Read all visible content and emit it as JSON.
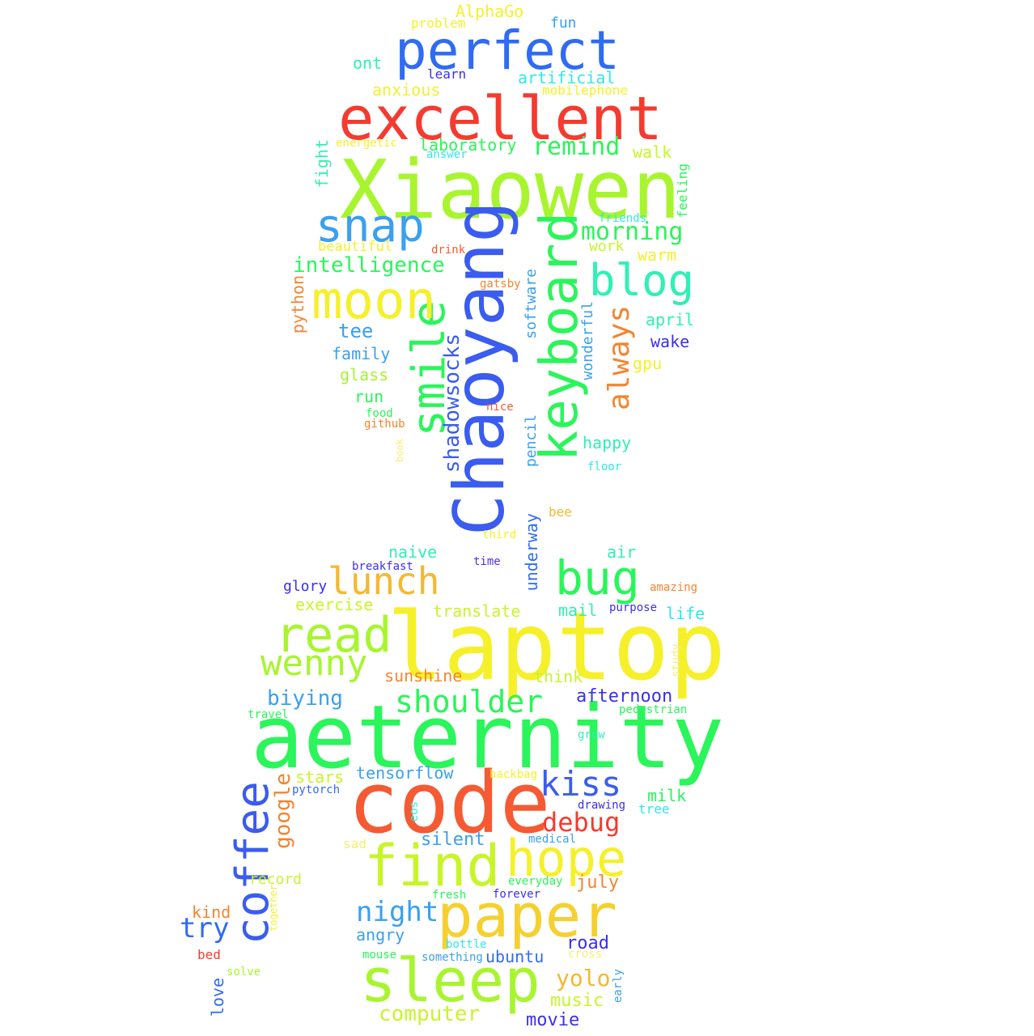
{
  "palette": {
    "blue": "#3a5cf0",
    "royal": "#2f6bf5",
    "sky": "#3aa0f0",
    "cyan": "#2fe8e8",
    "teal": "#2ff0b5",
    "green": "#2af55a",
    "lime": "#8cf52a",
    "chartreuse": "#a8f52f",
    "yellowgreen": "#c8f52a",
    "yellow": "#f5f02a",
    "gold": "#f5d02f",
    "amber": "#f5b82f",
    "orange": "#f5842f",
    "red": "#f53a2f",
    "redorange": "#f55a32",
    "indigo": "#3a2ff0",
    "purple": "#4a2ff0",
    "lightyellow": "#f5f070"
  },
  "words": [
    {
      "text": "Xiaowen",
      "color": "chartreuse"
    },
    {
      "text": "Chaoyang",
      "color": "blue"
    },
    {
      "text": "laptop",
      "color": "yellow"
    },
    {
      "text": "aeternity",
      "color": "green"
    },
    {
      "text": "code",
      "color": "redorange"
    },
    {
      "text": "excellent",
      "color": "red"
    },
    {
      "text": "perfect",
      "color": "royal"
    },
    {
      "text": "keyboard",
      "color": "green"
    },
    {
      "text": "smile",
      "color": "green"
    },
    {
      "text": "moon",
      "color": "yellow"
    },
    {
      "text": "snap",
      "color": "sky"
    },
    {
      "text": "blog",
      "color": "teal"
    },
    {
      "text": "coffee",
      "color": "blue"
    },
    {
      "text": "sleep",
      "color": "chartreuse"
    },
    {
      "text": "paper",
      "color": "gold"
    },
    {
      "text": "find",
      "color": "yellowgreen"
    },
    {
      "text": "hope",
      "color": "yellow"
    },
    {
      "text": "read",
      "color": "chartreuse"
    },
    {
      "text": "bug",
      "color": "green"
    },
    {
      "text": "lunch",
      "color": "amber"
    },
    {
      "text": "wenny",
      "color": "chartreuse"
    },
    {
      "text": "kiss",
      "color": "blue"
    },
    {
      "text": "shoulder",
      "color": "green"
    },
    {
      "text": "always",
      "color": "orange"
    },
    {
      "text": "shadowsocks",
      "color": "blue"
    },
    {
      "text": "debug",
      "color": "red"
    },
    {
      "text": "night",
      "color": "sky"
    },
    {
      "text": "google",
      "color": "orange"
    },
    {
      "text": "try",
      "color": "royal"
    },
    {
      "text": "remind",
      "color": "green"
    },
    {
      "text": "morning",
      "color": "green"
    },
    {
      "text": "intelligence",
      "color": "green"
    },
    {
      "text": "yolo",
      "color": "amber"
    },
    {
      "text": "computer",
      "color": "yellowgreen"
    },
    {
      "text": "biying",
      "color": "sky"
    },
    {
      "text": "afternoon",
      "color": "indigo"
    },
    {
      "text": "tensorflow",
      "color": "sky"
    },
    {
      "text": "music",
      "color": "yellowgreen"
    },
    {
      "text": "movie",
      "color": "indigo"
    },
    {
      "text": "ubuntu",
      "color": "royal"
    },
    {
      "text": "angry",
      "color": "sky"
    },
    {
      "text": "road",
      "color": "indigo"
    },
    {
      "text": "july",
      "color": "orange"
    },
    {
      "text": "silent",
      "color": "sky"
    },
    {
      "text": "milk",
      "color": "green"
    },
    {
      "text": "stars",
      "color": "yellowgreen"
    },
    {
      "text": "sunshine",
      "color": "orange"
    },
    {
      "text": "think",
      "color": "yellowgreen"
    },
    {
      "text": "translate",
      "color": "yellowgreen"
    },
    {
      "text": "exercise",
      "color": "yellowgreen"
    },
    {
      "text": "glory",
      "color": "indigo"
    },
    {
      "text": "naive",
      "color": "teal"
    },
    {
      "text": "air",
      "color": "teal"
    },
    {
      "text": "mail",
      "color": "teal"
    },
    {
      "text": "life",
      "color": "cyan"
    },
    {
      "text": "underway",
      "color": "royal"
    },
    {
      "text": "pencil",
      "color": "sky"
    },
    {
      "text": "happy",
      "color": "teal"
    },
    {
      "text": "wonderful",
      "color": "sky"
    },
    {
      "text": "software",
      "color": "sky"
    },
    {
      "text": "tee",
      "color": "sky"
    },
    {
      "text": "family",
      "color": "sky"
    },
    {
      "text": "glass",
      "color": "chartreuse"
    },
    {
      "text": "run",
      "color": "green"
    },
    {
      "text": "april",
      "color": "teal"
    },
    {
      "text": "wake",
      "color": "indigo"
    },
    {
      "text": "gpu",
      "color": "yellow"
    },
    {
      "text": "warm",
      "color": "yellow"
    },
    {
      "text": "work",
      "color": "yellowgreen"
    },
    {
      "text": "walk",
      "color": "yellowgreen"
    },
    {
      "text": "laboratory",
      "color": "green"
    },
    {
      "text": "fight",
      "color": "teal"
    },
    {
      "text": "python",
      "color": "orange"
    },
    {
      "text": "beautiful",
      "color": "yellow"
    },
    {
      "text": "artificial",
      "color": "cyan"
    },
    {
      "text": "anxious",
      "color": "yellow"
    },
    {
      "text": "ont",
      "color": "teal"
    },
    {
      "text": "learn",
      "color": "indigo"
    },
    {
      "text": "mobilephone",
      "color": "yellow"
    },
    {
      "text": "problem",
      "color": "yellow"
    },
    {
      "text": "AlphaGo",
      "color": "yellow"
    },
    {
      "text": "fun",
      "color": "sky"
    },
    {
      "text": "energetic",
      "color": "yellow"
    },
    {
      "text": "answer",
      "color": "cyan"
    },
    {
      "text": "feeling",
      "color": "green"
    },
    {
      "text": "friends",
      "color": "cyan"
    },
    {
      "text": "drink",
      "color": "redorange"
    },
    {
      "text": "gatsby",
      "color": "orange"
    },
    {
      "text": "nice",
      "color": "redorange"
    },
    {
      "text": "food",
      "color": "green"
    },
    {
      "text": "github",
      "color": "orange"
    },
    {
      "text": "book",
      "color": "lightyellow"
    },
    {
      "text": "floor",
      "color": "cyan"
    },
    {
      "text": "bee",
      "color": "amber"
    },
    {
      "text": "third",
      "color": "yellow"
    },
    {
      "text": "time",
      "color": "purple"
    },
    {
      "text": "breakfast",
      "color": "indigo"
    },
    {
      "text": "amazing",
      "color": "orange"
    },
    {
      "text": "purpose",
      "color": "indigo"
    },
    {
      "text": "study",
      "color": "lightyellow"
    },
    {
      "text": "travel",
      "color": "green"
    },
    {
      "text": "pedestrian",
      "color": "green"
    },
    {
      "text": "grow",
      "color": "teal"
    },
    {
      "text": "backbag",
      "color": "yellow"
    },
    {
      "text": "pytorch",
      "color": "royal"
    },
    {
      "text": "eos",
      "color": "cyan"
    },
    {
      "text": "drawing",
      "color": "indigo"
    },
    {
      "text": "tree",
      "color": "cyan"
    },
    {
      "text": "medical",
      "color": "sky"
    },
    {
      "text": "sad",
      "color": "lightyellow"
    },
    {
      "text": "record",
      "color": "yellowgreen"
    },
    {
      "text": "everyday",
      "color": "green"
    },
    {
      "text": "fresh",
      "color": "green"
    },
    {
      "text": "forever",
      "color": "indigo"
    },
    {
      "text": "together",
      "color": "yellow"
    },
    {
      "text": "kind",
      "color": "orange"
    },
    {
      "text": "bottle",
      "color": "cyan"
    },
    {
      "text": "cross",
      "color": "lightyellow"
    },
    {
      "text": "bed",
      "color": "red"
    },
    {
      "text": "mouse",
      "color": "green"
    },
    {
      "text": "something",
      "color": "sky"
    },
    {
      "text": "solve",
      "color": "chartreuse"
    },
    {
      "text": "love",
      "color": "royal"
    },
    {
      "text": "early",
      "color": "sky"
    }
  ]
}
